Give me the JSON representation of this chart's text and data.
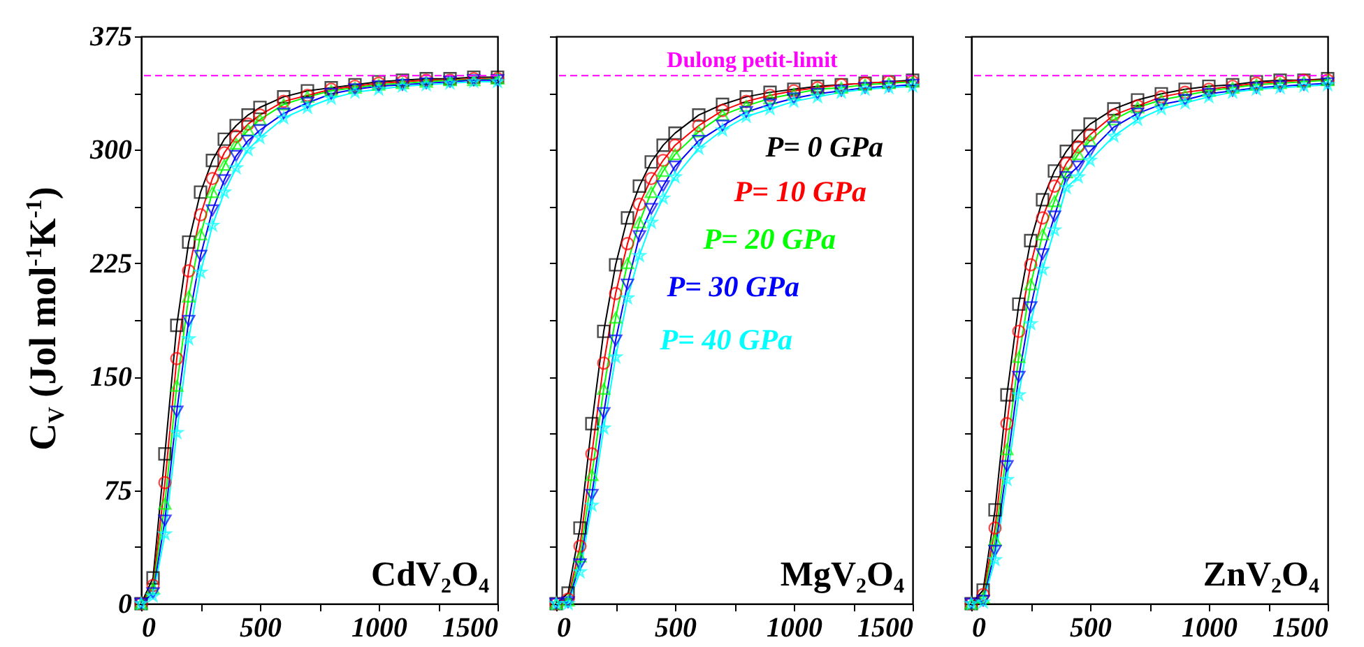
{
  "chart_data": [
    {
      "type": "line",
      "ylabel": "C$_{V}$ (Jol mol$^{-1}$K$^{-1}$)",
      "annotations": [
        "CdV₂O₄"
      ],
      "x": [
        0,
        50,
        100,
        150,
        200,
        250,
        300,
        350,
        400,
        450,
        500,
        600,
        700,
        800,
        900,
        1000,
        1100,
        1200,
        1300,
        1400,
        1500
      ],
      "xlim": [
        0,
        1500
      ],
      "xticks": [
        0,
        {
          "value": 250,
          "label": null
        },
        500,
        {
          "value": 750,
          "label": null
        },
        1000,
        {
          "value": 1250,
          "label": null
        },
        1500
      ],
      "ylim": [
        0,
        375
      ],
      "yticks": [
        0,
        {
          "value": 37.5,
          "label": null
        },
        75,
        {
          "value": 112.5,
          "label": null
        },
        150,
        {
          "value": 187.5,
          "label": null
        },
        225,
        {
          "value": 262.5,
          "label": null
        },
        300,
        {
          "value": 337.5,
          "label": null
        },
        375
      ],
      "ref_lines": [
        {
          "axis": "y",
          "value": 349,
          "color": "#ff00ff",
          "line_style": "dashed"
        }
      ],
      "series": [
        {
          "color": "#000000",
          "marker": "square",
          "values": [
            0,
            17,
            99,
            184,
            239,
            272,
            293,
            307,
            316,
            323,
            328,
            335,
            339,
            341,
            343,
            345,
            346,
            347,
            347,
            348,
            348
          ]
        },
        {
          "color": "#ff0000",
          "marker": "circle",
          "values": [
            0,
            12,
            80,
            162,
            220,
            257,
            281,
            298,
            309,
            317,
            323,
            332,
            336,
            340,
            342,
            344,
            345,
            346,
            346,
            347,
            347
          ]
        },
        {
          "color": "#00ff00",
          "marker": "triangle",
          "values": [
            0,
            10,
            66,
            144,
            203,
            244,
            272,
            290,
            304,
            313,
            320,
            330,
            335,
            339,
            341,
            343,
            344,
            345,
            346,
            346,
            347
          ]
        },
        {
          "color": "#0000ff",
          "marker": "triangle-down",
          "values": [
            0,
            7,
            55,
            127,
            187,
            230,
            260,
            280,
            296,
            306,
            313,
            324,
            331,
            337,
            340,
            342,
            343,
            344,
            345,
            346,
            346
          ]
        },
        {
          "color": "#00ffff",
          "marker": "star",
          "values": [
            0,
            5,
            46,
            113,
            175,
            219,
            250,
            272,
            288,
            300,
            308,
            321,
            328,
            334,
            338,
            340,
            342,
            343,
            344,
            345,
            345
          ]
        }
      ]
    },
    {
      "type": "line",
      "annotations": [
        "MgV₂O₄"
      ],
      "tick_labels": "x",
      "x": [
        0,
        50,
        100,
        150,
        200,
        250,
        300,
        350,
        400,
        450,
        500,
        600,
        700,
        800,
        900,
        1000,
        1100,
        1200,
        1300,
        1400,
        1500
      ],
      "xlim": [
        0,
        1500
      ],
      "xticks": [
        0,
        {
          "value": 250,
          "label": null
        },
        500,
        {
          "value": 750,
          "label": null
        },
        1000,
        {
          "value": 1250,
          "label": null
        },
        1500
      ],
      "ylim": [
        0,
        375
      ],
      "yticks": [
        0,
        {
          "value": 37.5,
          "label": null
        },
        75,
        {
          "value": 112.5,
          "label": null
        },
        150,
        {
          "value": 187.5,
          "label": null
        },
        225,
        {
          "value": 262.5,
          "label": null
        },
        300,
        {
          "value": 337.5,
          "label": null
        },
        375
      ],
      "ref_lines": [
        {
          "axis": "y",
          "value": 349,
          "label": "Dulong petit-limit",
          "color": "#ff00ff",
          "line_style": "dashed"
        }
      ],
      "series": [
        {
          "name": "P= 0 GPa",
          "color": "#000000",
          "marker": "square",
          "values": [
            0,
            7,
            50,
            119,
            180,
            224,
            255,
            276,
            292,
            303,
            311,
            323,
            330,
            335,
            338,
            340,
            342,
            343,
            344,
            345,
            346
          ]
        },
        {
          "name": "P= 10 GPa",
          "color": "#ff0000",
          "marker": "circle",
          "values": [
            0,
            3,
            38,
            99,
            159,
            205,
            238,
            264,
            281,
            293,
            303,
            316,
            326,
            332,
            336,
            339,
            341,
            343,
            344,
            345,
            345
          ]
        },
        {
          "name": "P= 20 GPa",
          "color": "#00ff00",
          "marker": "triangle",
          "values": [
            0,
            2,
            31,
            85,
            142,
            189,
            225,
            252,
            272,
            286,
            297,
            312,
            323,
            329,
            334,
            337,
            340,
            341,
            343,
            344,
            345
          ]
        },
        {
          "name": "P= 30 GPa",
          "color": "#0000ff",
          "marker": "triangle-down",
          "values": [
            0,
            1,
            26,
            72,
            126,
            174,
            211,
            243,
            261,
            276,
            289,
            306,
            316,
            325,
            330,
            334,
            337,
            339,
            341,
            342,
            343
          ]
        },
        {
          "name": "P= 40 GPa",
          "color": "#00ffff",
          "marker": "star",
          "values": [
            0,
            0,
            21,
            65,
            116,
            163,
            202,
            230,
            252,
            268,
            282,
            301,
            313,
            322,
            327,
            332,
            335,
            338,
            340,
            341,
            342
          ]
        }
      ]
    },
    {
      "type": "line",
      "annotations": [
        "ZnV₂O₄"
      ],
      "tick_labels": "x",
      "x": [
        0,
        50,
        100,
        150,
        200,
        250,
        300,
        350,
        400,
        450,
        500,
        600,
        700,
        800,
        900,
        1000,
        1100,
        1200,
        1300,
        1400,
        1500
      ],
      "xlim": [
        0,
        1500
      ],
      "xticks": [
        0,
        {
          "value": 250,
          "label": null
        },
        500,
        {
          "value": 750,
          "label": null
        },
        1000,
        {
          "value": 1250,
          "label": null
        },
        1500
      ],
      "ylim": [
        0,
        375
      ],
      "yticks": [
        0,
        {
          "value": 37.5,
          "label": null
        },
        75,
        {
          "value": 112.5,
          "label": null
        },
        150,
        {
          "value": 187.5,
          "label": null
        },
        225,
        {
          "value": 262.5,
          "label": null
        },
        300,
        {
          "value": 337.5,
          "label": null
        },
        375
      ],
      "ref_lines": [
        {
          "axis": "y",
          "value": 349,
          "color": "#ff00ff",
          "line_style": "dashed"
        }
      ],
      "series": [
        {
          "color": "#000000",
          "marker": "square",
          "values": [
            0,
            9,
            62,
            138,
            198,
            240,
            267,
            286,
            299,
            309,
            317,
            327,
            333,
            337,
            340,
            342,
            343,
            345,
            346,
            346,
            347
          ]
        },
        {
          "color": "#ff0000",
          "marker": "circle",
          "values": [
            0,
            6,
            50,
            119,
            180,
            224,
            255,
            276,
            291,
            302,
            310,
            323,
            329,
            335,
            338,
            340,
            342,
            344,
            345,
            346,
            346
          ]
        },
        {
          "color": "#00ff00",
          "marker": "triangle",
          "values": [
            0,
            4,
            42,
            102,
            163,
            211,
            244,
            266,
            285,
            297,
            306,
            320,
            328,
            333,
            336,
            339,
            341,
            343,
            344,
            345,
            346
          ]
        },
        {
          "color": "#0000ff",
          "marker": "triangle-down",
          "values": [
            0,
            2,
            35,
            91,
            150,
            196,
            231,
            256,
            282,
            289,
            299,
            315,
            324,
            330,
            333,
            337,
            339,
            341,
            342,
            343,
            344
          ]
        },
        {
          "color": "#00ffff",
          "marker": "star",
          "values": [
            0,
            1,
            29,
            82,
            138,
            185,
            221,
            247,
            275,
            282,
            293,
            309,
            320,
            327,
            331,
            335,
            338,
            340,
            341,
            342,
            343
          ]
        }
      ]
    }
  ]
}
